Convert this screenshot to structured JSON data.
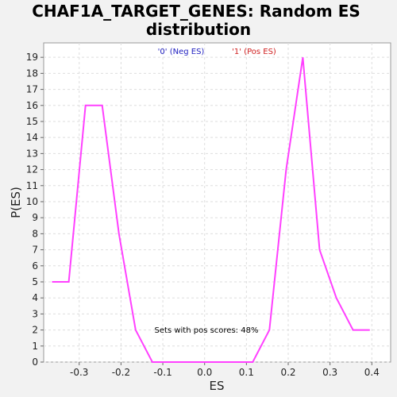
{
  "chart_data": {
    "type": "line",
    "title_line1": "CHAF1A_TARGET_GENES: Random ES",
    "title_line2": "distribution",
    "xlabel": "ES",
    "ylabel": "P(ES)",
    "xlim": [
      -0.385,
      0.445
    ],
    "ylim": [
      0,
      19.9
    ],
    "x_ticks": [
      -0.3,
      -0.2,
      -0.1,
      0.0,
      0.1,
      0.2,
      0.3,
      0.4
    ],
    "x_tick_labels": [
      "-0.3",
      "-0.2",
      "-0.1",
      "0.0",
      "0.1",
      "0.2",
      "0.3",
      "0.4"
    ],
    "y_ticks": [
      0,
      1,
      2,
      3,
      4,
      5,
      6,
      7,
      8,
      9,
      10,
      11,
      12,
      13,
      14,
      15,
      16,
      17,
      18,
      19
    ],
    "y_tick_labels": [
      "0",
      "1",
      "2",
      "3",
      "4",
      "5",
      "6",
      "7",
      "8",
      "9",
      "10",
      "11",
      "12",
      "13",
      "14",
      "15",
      "16",
      "17",
      "18",
      "19"
    ],
    "grid": true,
    "legend": [
      {
        "label": "'0' (Neg ES)",
        "color": "#2020c0"
      },
      {
        "label": "'1' (Pos ES)",
        "color": "#d02020"
      }
    ],
    "annotation": "Sets with pos scores: 48%",
    "series_color": "#ff40ff",
    "x": [
      -0.365,
      -0.325,
      -0.285,
      -0.245,
      -0.205,
      -0.165,
      -0.125,
      -0.085,
      -0.045,
      -0.005,
      0.035,
      0.075,
      0.115,
      0.155,
      0.195,
      0.235,
      0.275,
      0.315,
      0.355,
      0.395
    ],
    "y": [
      5,
      5,
      16,
      16,
      8,
      2,
      0,
      0,
      0,
      0,
      0,
      0,
      0,
      2,
      12,
      19,
      7,
      4,
      2,
      2
    ]
  }
}
